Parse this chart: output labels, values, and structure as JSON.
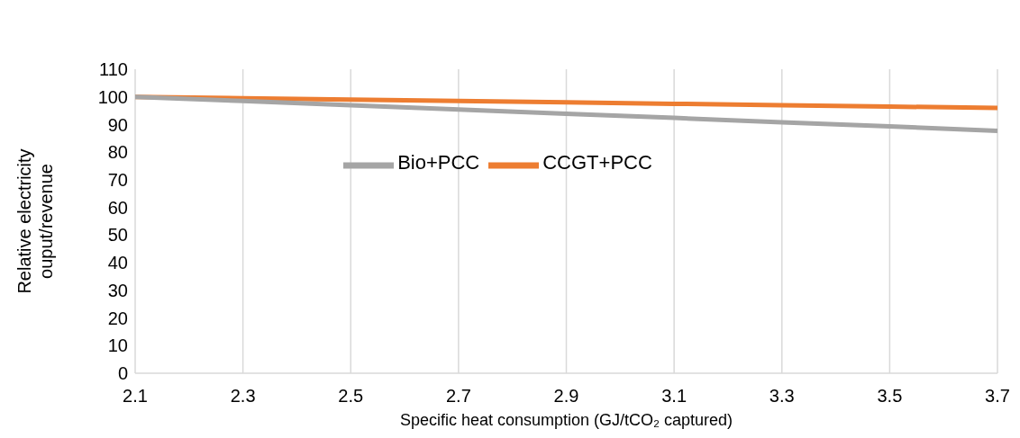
{
  "chart_data": {
    "type": "line",
    "xlabel": "Specific heat consumption (GJ/tCO₂ captured)",
    "ylabel": "Relative electricity ouput/revenue",
    "x": [
      2.1,
      2.3,
      2.5,
      2.7,
      2.9,
      3.1,
      3.3,
      3.5,
      3.7
    ],
    "series": [
      {
        "name": "CCGT+PCC",
        "color": "#ed7d31",
        "values": [
          100,
          99.5,
          99,
          98.5,
          98,
          97.5,
          97,
          96.5,
          96
        ]
      },
      {
        "name": "Bio+PCC",
        "color": "#a5a5a5",
        "values": [
          100,
          98.5,
          97,
          95.4,
          93.9,
          92.4,
          90.8,
          89.3,
          87.7
        ]
      }
    ],
    "xlim": [
      2.1,
      3.7
    ],
    "xticks": [
      2.1,
      2.3,
      2.5,
      2.7,
      2.9,
      3.1,
      3.3,
      3.5,
      3.7
    ],
    "ylim": [
      0,
      110
    ],
    "yticks": [
      0,
      10,
      20,
      30,
      40,
      50,
      60,
      70,
      80,
      90,
      100,
      110
    ],
    "grid": "x",
    "legend": "center",
    "marker": "none",
    "line_style": "solid"
  }
}
